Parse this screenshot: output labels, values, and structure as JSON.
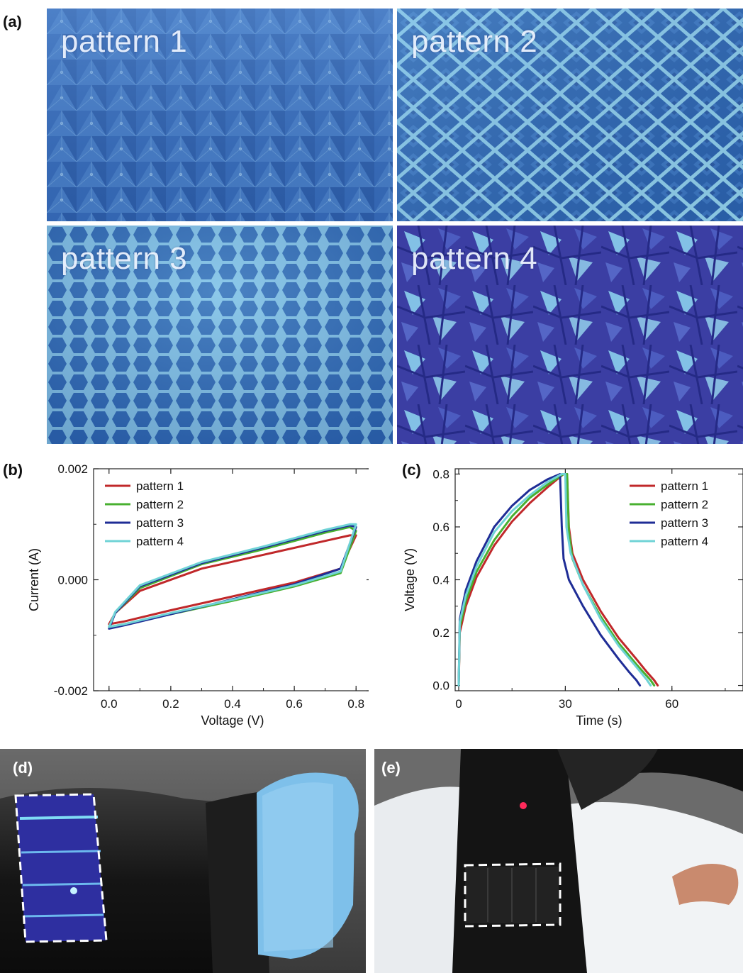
{
  "figure": {
    "panels": {
      "a": "(a)",
      "b": "(b)",
      "c": "(c)",
      "d": "(d)",
      "e": "(e)"
    },
    "photos": [
      {
        "caption": "pattern 1",
        "texture": "triangular",
        "base": "#3f74bf",
        "accent": "#8fc4ee"
      },
      {
        "caption": "pattern 2",
        "texture": "diamond-grid",
        "base": "#2f68b0",
        "accent": "#9ee4f3"
      },
      {
        "caption": "pattern 3",
        "texture": "hexagonal",
        "base": "#336cb5",
        "accent": "#9ad8f0"
      },
      {
        "caption": "pattern 4",
        "texture": "random-crumple",
        "base": "#3b3fa6",
        "accent": "#9fe0f4"
      }
    ]
  },
  "colors": {
    "pattern1": "#c0282a",
    "pattern2": "#48b030",
    "pattern3": "#1f2d96",
    "pattern4": "#6fd3d6"
  },
  "chart_data": [
    {
      "type": "line",
      "panel": "b",
      "xlabel": "Voltage (V)",
      "ylabel": "Current (A)",
      "xlim": [
        -0.05,
        0.85
      ],
      "ylim": [
        -0.002,
        0.002
      ],
      "xticks": [
        "0.0",
        "0.2",
        "0.4",
        "0.6",
        "0.8"
      ],
      "yticks": [
        "-0.002",
        "0.000",
        "0.002"
      ],
      "legend": "top-left",
      "series": [
        {
          "name": "pattern 1",
          "x": [
            0.0,
            0.05,
            0.2,
            0.4,
            0.6,
            0.75,
            0.8,
            0.78,
            0.7,
            0.5,
            0.3,
            0.1,
            0.02,
            0.0
          ],
          "y": [
            -0.0008,
            -0.00075,
            -0.00055,
            -0.0003,
            -5e-05,
            0.0002,
            0.0008,
            0.0008,
            0.0007,
            0.00045,
            0.0002,
            -0.0002,
            -0.0006,
            -0.0008
          ]
        },
        {
          "name": "pattern 2",
          "x": [
            0.0,
            0.05,
            0.2,
            0.4,
            0.6,
            0.75,
            0.8,
            0.78,
            0.7,
            0.5,
            0.3,
            0.1,
            0.02,
            0.0
          ],
          "y": [
            -0.00085,
            -0.0008,
            -0.00062,
            -0.00038,
            -0.00012,
            0.00012,
            0.00088,
            0.00095,
            0.00085,
            0.00055,
            0.00028,
            -0.00015,
            -0.0006,
            -0.00085
          ]
        },
        {
          "name": "pattern 3",
          "x": [
            0.0,
            0.05,
            0.2,
            0.4,
            0.6,
            0.75,
            0.8,
            0.78,
            0.7,
            0.5,
            0.3,
            0.1,
            0.02,
            0.0
          ],
          "y": [
            -0.00088,
            -0.00082,
            -0.00062,
            -0.00035,
            -8e-05,
            0.0002,
            0.00095,
            0.00098,
            0.00088,
            0.00058,
            0.0003,
            -0.00012,
            -0.0006,
            -0.00088
          ]
        },
        {
          "name": "pattern 4",
          "x": [
            0.0,
            0.05,
            0.2,
            0.4,
            0.6,
            0.75,
            0.8,
            0.78,
            0.7,
            0.5,
            0.3,
            0.1,
            0.02,
            0.0
          ],
          "y": [
            -0.00085,
            -0.0008,
            -0.0006,
            -0.00036,
            -0.0001,
            0.00015,
            0.001,
            0.001,
            0.0009,
            0.0006,
            0.00032,
            -0.0001,
            -0.00058,
            -0.00085
          ]
        }
      ]
    },
    {
      "type": "line",
      "panel": "c",
      "xlabel": "Time (s)",
      "ylabel": "Voltage (V)",
      "xlim": [
        -1,
        80
      ],
      "ylim": [
        -0.02,
        0.82
      ],
      "xticks": [
        "0",
        "30",
        "60"
      ],
      "yticks": [
        "0.0",
        "0.2",
        "0.4",
        "0.6",
        "0.8"
      ],
      "legend": "top-right",
      "series": [
        {
          "name": "pattern 1",
          "x": [
            0,
            0.3,
            2,
            5,
            10,
            15,
            20,
            25,
            29.5,
            30.5,
            31,
            32,
            35,
            40,
            45,
            50,
            53,
            55,
            56
          ],
          "y": [
            0.0,
            0.2,
            0.3,
            0.41,
            0.53,
            0.62,
            0.69,
            0.75,
            0.8,
            0.8,
            0.6,
            0.5,
            0.4,
            0.28,
            0.18,
            0.1,
            0.05,
            0.02,
            0.0
          ]
        },
        {
          "name": "pattern 2",
          "x": [
            0,
            0.3,
            2,
            5,
            10,
            15,
            20,
            25,
            29.5,
            30.5,
            31,
            32,
            35,
            40,
            45,
            50,
            54,
            55
          ],
          "y": [
            0.0,
            0.22,
            0.32,
            0.43,
            0.55,
            0.64,
            0.71,
            0.76,
            0.8,
            0.8,
            0.58,
            0.48,
            0.38,
            0.26,
            0.16,
            0.08,
            0.02,
            0.0
          ]
        },
        {
          "name": "pattern 3",
          "x": [
            0,
            0.3,
            2,
            5,
            10,
            15,
            20,
            25,
            28.5,
            29,
            29.5,
            31,
            35,
            40,
            45,
            48,
            50,
            51
          ],
          "y": [
            0.0,
            0.25,
            0.36,
            0.47,
            0.6,
            0.68,
            0.74,
            0.78,
            0.8,
            0.6,
            0.48,
            0.4,
            0.3,
            0.19,
            0.1,
            0.05,
            0.02,
            0.0
          ]
        },
        {
          "name": "pattern 4",
          "x": [
            0,
            0.3,
            2,
            5,
            10,
            15,
            20,
            25,
            29,
            30,
            30.3,
            31.5,
            35,
            40,
            45,
            50,
            53,
            54
          ],
          "y": [
            0.0,
            0.24,
            0.34,
            0.45,
            0.58,
            0.66,
            0.72,
            0.77,
            0.8,
            0.8,
            0.6,
            0.5,
            0.38,
            0.25,
            0.15,
            0.07,
            0.02,
            0.0
          ]
        }
      ]
    }
  ]
}
